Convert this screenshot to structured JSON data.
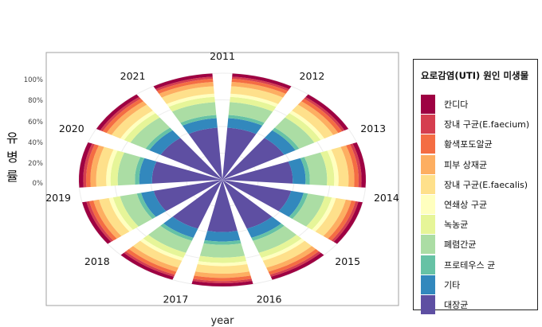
{
  "chart_data": {
    "type": "pie",
    "subtype": "polar-stacked-bar",
    "xlabel": "year",
    "ylabel": "유병률",
    "categories": [
      "2011",
      "2012",
      "2013",
      "2014",
      "2015",
      "2016",
      "2017",
      "2018",
      "2019",
      "2020",
      "2021"
    ],
    "ylim": [
      0,
      1
    ],
    "y_ticks": [
      "0%",
      "20%",
      "40%",
      "60%",
      "80%",
      "100%"
    ],
    "legend": {
      "title": "요로감염(UTI) 원인 미생물",
      "position": "right"
    },
    "series": [
      {
        "name": "칸디다",
        "color": "#9E0142",
        "values": [
          0.03,
          0.03,
          0.03,
          0.03,
          0.03,
          0.03,
          0.03,
          0.03,
          0.03,
          0.03,
          0.03
        ]
      },
      {
        "name": "장내 구균(E.faecium)",
        "color": "#D53E4F",
        "values": [
          0.02,
          0.02,
          0.02,
          0.02,
          0.02,
          0.02,
          0.02,
          0.02,
          0.02,
          0.02,
          0.02
        ]
      },
      {
        "name": "황색포도알균",
        "color": "#F46D43",
        "values": [
          0.03,
          0.03,
          0.03,
          0.03,
          0.03,
          0.03,
          0.03,
          0.03,
          0.03,
          0.03,
          0.03
        ]
      },
      {
        "name": "피부 상재균",
        "color": "#FDAE61",
        "values": [
          0.04,
          0.04,
          0.04,
          0.04,
          0.04,
          0.04,
          0.04,
          0.04,
          0.04,
          0.04,
          0.04
        ]
      },
      {
        "name": "장내 구균(E.faecalis)",
        "color": "#FEE08B",
        "values": [
          0.07,
          0.07,
          0.07,
          0.07,
          0.07,
          0.07,
          0.07,
          0.07,
          0.07,
          0.07,
          0.07
        ]
      },
      {
        "name": "연쇄상 구균",
        "color": "#FFFFBF",
        "values": [
          0.03,
          0.03,
          0.03,
          0.03,
          0.03,
          0.03,
          0.03,
          0.03,
          0.03,
          0.03,
          0.03
        ]
      },
      {
        "name": "녹농균",
        "color": "#E6F598",
        "values": [
          0.05,
          0.05,
          0.05,
          0.05,
          0.05,
          0.05,
          0.05,
          0.05,
          0.05,
          0.05,
          0.05
        ]
      },
      {
        "name": "폐렴간균",
        "color": "#ABDDA4",
        "values": [
          0.12,
          0.12,
          0.12,
          0.12,
          0.12,
          0.12,
          0.12,
          0.12,
          0.12,
          0.12,
          0.12
        ]
      },
      {
        "name": "프로테우스 균",
        "color": "#66C2A5",
        "values": [
          0.03,
          0.03,
          0.03,
          0.03,
          0.03,
          0.03,
          0.03,
          0.03,
          0.03,
          0.03,
          0.03
        ]
      },
      {
        "name": "기타",
        "color": "#3288BD",
        "values": [
          0.09,
          0.09,
          0.09,
          0.09,
          0.09,
          0.09,
          0.09,
          0.09,
          0.09,
          0.09,
          0.09
        ]
      },
      {
        "name": "대장균",
        "color": "#5E4FA2",
        "values": [
          0.49,
          0.49,
          0.49,
          0.49,
          0.49,
          0.49,
          0.49,
          0.49,
          0.49,
          0.49,
          0.49
        ]
      }
    ],
    "panel_background": "#ffffff",
    "grid": true
  }
}
